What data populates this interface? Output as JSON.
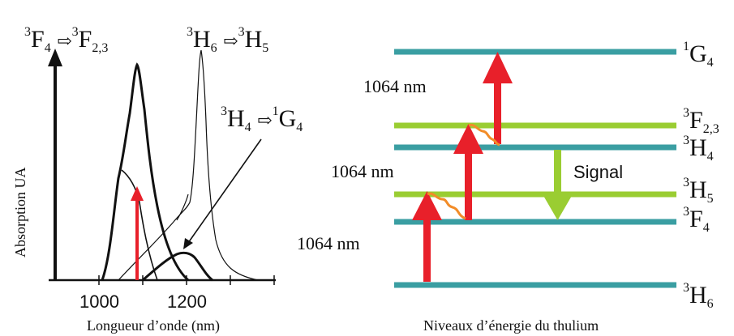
{
  "spectrum": {
    "transitions": [
      {
        "lower": "3",
        "level": "F",
        "level_sub": "4",
        "upper_sup": "3",
        "upper": "F",
        "upper_sub": "2,3"
      },
      {
        "lower": "3",
        "level": "H",
        "level_sub": "6",
        "upper_sup": "3",
        "upper": "H",
        "upper_sub": "5"
      },
      {
        "lower": "3",
        "level": "H",
        "level_sub": "4",
        "upper_sup": "1",
        "upper": "G",
        "upper_sub": "4"
      }
    ],
    "ylabel": "Absorption UA",
    "xlabel": "Longueur d’onde (nm)",
    "xticks": [
      "1000",
      "1200"
    ],
    "colors": {
      "curve": "#111111",
      "pump_arrow": "#e8202a"
    }
  },
  "energy": {
    "caption": "Niveaux d’énergie du thulium",
    "levels": [
      {
        "sup": "1",
        "name": "G",
        "sub": "4",
        "color": "#3a9ea2"
      },
      {
        "sup": "3",
        "name": "F",
        "sub": "2,3",
        "color": "#9acd32"
      },
      {
        "sup": "3",
        "name": "H",
        "sub": "4",
        "color": "#3a9ea2"
      },
      {
        "sup": "3",
        "name": "H",
        "sub": "5",
        "color": "#9acd32"
      },
      {
        "sup": "3",
        "name": "F",
        "sub": "4",
        "color": "#3a9ea2"
      },
      {
        "sup": "3",
        "name": "H",
        "sub": "6",
        "color": "#3a9ea2"
      }
    ],
    "pump_labels": [
      "1064 nm",
      "1064 nm",
      "1064 nm"
    ],
    "signal_label": "Signal",
    "colors": {
      "pump": "#e8202a",
      "relax": "#f28c28",
      "signal": "#9acd32"
    }
  }
}
